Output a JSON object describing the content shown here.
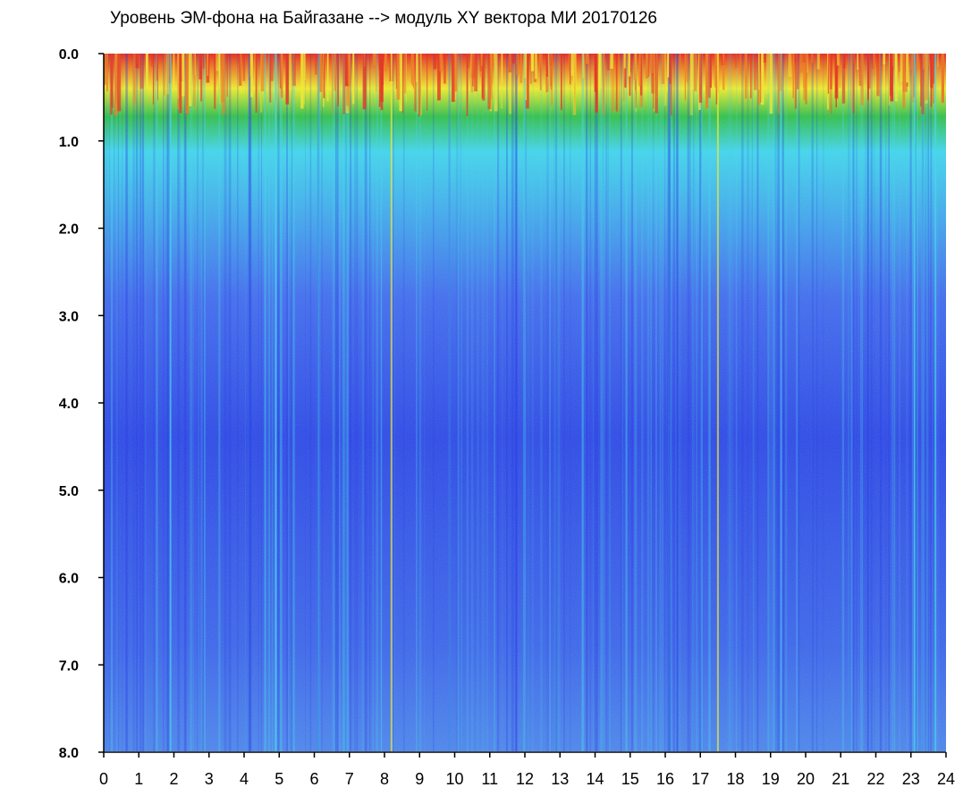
{
  "chart_data": {
    "type": "heatmap",
    "title": "Уровень ЭМ-фона на Байгазане   -->  модуль XY вектора МИ  20170126",
    "xlabel": "",
    "ylabel": "",
    "xlim": [
      0,
      24
    ],
    "ylim": [
      0,
      8
    ],
    "y_axis_inverted": true,
    "x_ticks": [
      "0",
      "1",
      "2",
      "3",
      "4",
      "5",
      "6",
      "7",
      "8",
      "9",
      "10",
      "11",
      "12",
      "13",
      "14",
      "15",
      "16",
      "17",
      "18",
      "19",
      "20",
      "21",
      "22",
      "23",
      "24"
    ],
    "y_ticks": [
      "0.0",
      "1.0",
      "2.0",
      "3.0",
      "4.0",
      "5.0",
      "6.0",
      "7.0",
      "8.0"
    ],
    "colormap": [
      "#1b2ee8",
      "#3f6cf2",
      "#3fd8f0",
      "#2fc24a",
      "#f2ee2a",
      "#f07c1c",
      "#e8281a",
      "#ffffff"
    ],
    "grid": false,
    "legend": "none"
  }
}
